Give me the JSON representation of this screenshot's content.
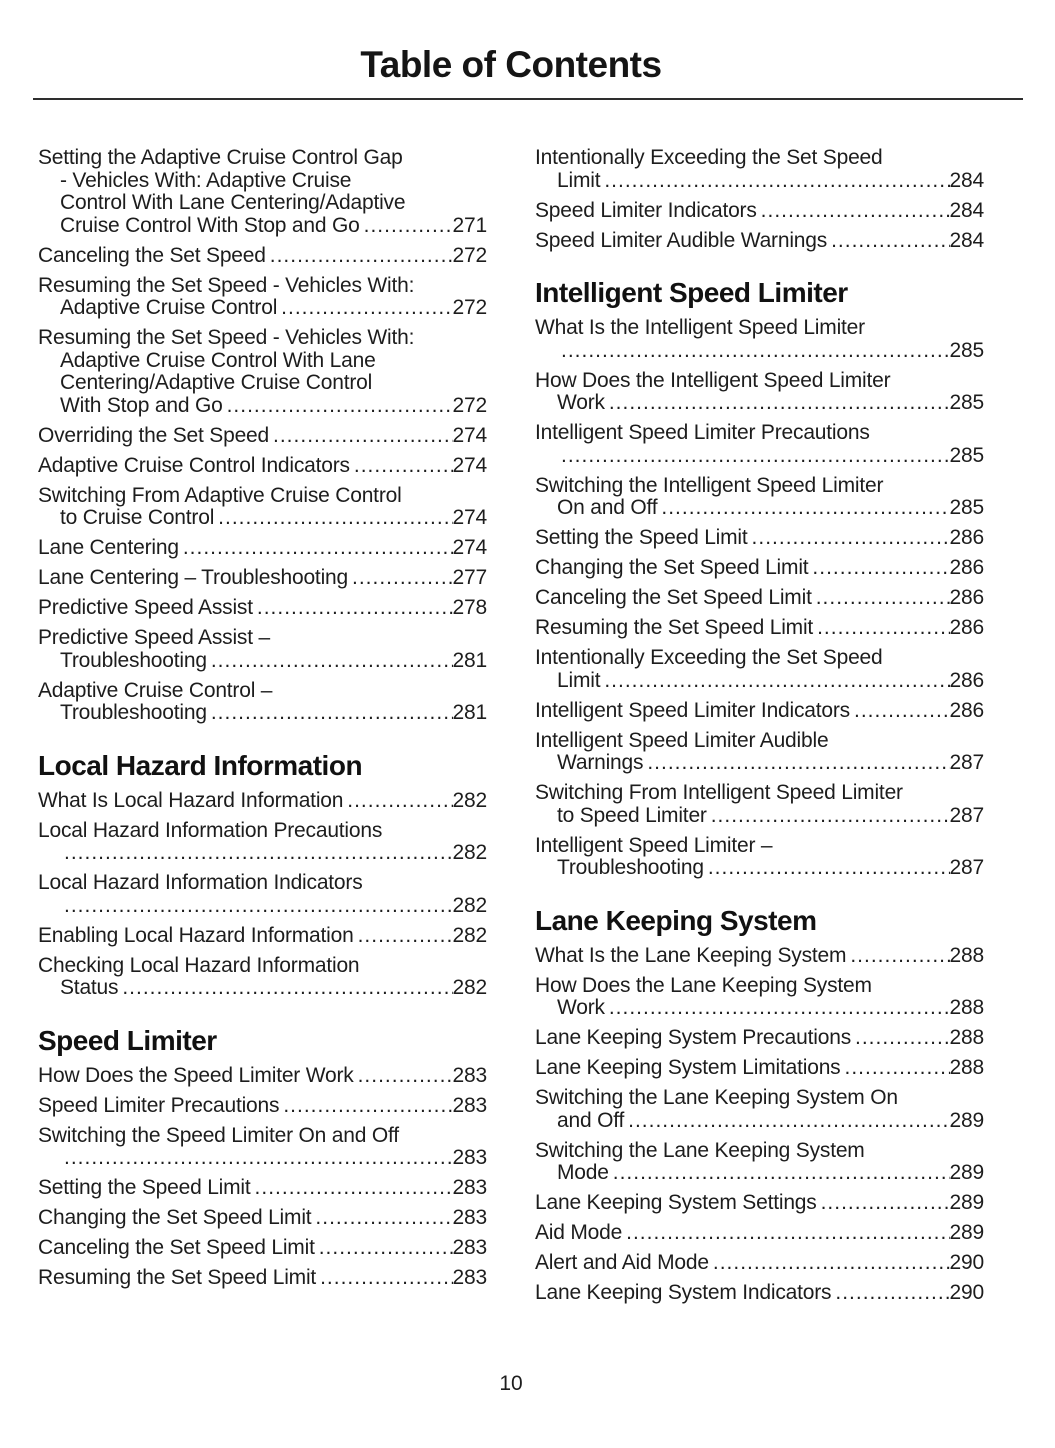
{
  "header": {
    "title": "Table of Contents"
  },
  "footer": {
    "page_number": "10"
  },
  "toc": {
    "columns": [
      {
        "blocks": [
          {
            "type": "entry",
            "lines": [
              "Setting the Adaptive Cruise Control Gap",
              "- Vehicles With: Adaptive Cruise",
              "Control With Lane Centering/Adaptive",
              "Cruise Control With Stop and Go"
            ],
            "page": "271"
          },
          {
            "type": "entry",
            "lines": [
              "Canceling the Set Speed"
            ],
            "page": "272"
          },
          {
            "type": "entry",
            "lines": [
              "Resuming the Set Speed - Vehicles With:",
              "Adaptive Cruise Control"
            ],
            "page": "272"
          },
          {
            "type": "entry",
            "lines": [
              "Resuming the Set Speed - Vehicles With:",
              "Adaptive Cruise Control With Lane",
              "Centering/Adaptive Cruise Control",
              "With Stop and Go"
            ],
            "page": "272"
          },
          {
            "type": "entry",
            "lines": [
              "Overriding the Set Speed"
            ],
            "page": "274"
          },
          {
            "type": "entry",
            "lines": [
              "Adaptive Cruise Control Indicators"
            ],
            "page": "274"
          },
          {
            "type": "entry",
            "lines": [
              "Switching From Adaptive Cruise Control",
              "to Cruise Control"
            ],
            "page": "274"
          },
          {
            "type": "entry",
            "lines": [
              "Lane Centering"
            ],
            "page": "274"
          },
          {
            "type": "entry",
            "lines": [
              "Lane Centering – Troubleshooting"
            ],
            "page": "277"
          },
          {
            "type": "entry",
            "lines": [
              "Predictive Speed Assist"
            ],
            "page": "278"
          },
          {
            "type": "entry",
            "lines": [
              "Predictive Speed Assist –",
              "Troubleshooting"
            ],
            "page": "281"
          },
          {
            "type": "entry",
            "lines": [
              "Adaptive Cruise Control –",
              "Troubleshooting"
            ],
            "page": "281"
          },
          {
            "type": "heading",
            "text": "Local Hazard Information"
          },
          {
            "type": "entry",
            "lines": [
              "What Is Local Hazard Information"
            ],
            "page": "282"
          },
          {
            "type": "entry",
            "lines": [
              "Local Hazard Information Precautions",
              ""
            ],
            "page": "282"
          },
          {
            "type": "entry",
            "lines": [
              "Local Hazard Information Indicators",
              ""
            ],
            "page": "282"
          },
          {
            "type": "entry",
            "lines": [
              "Enabling Local Hazard Information"
            ],
            "page": "282"
          },
          {
            "type": "entry",
            "lines": [
              "Checking Local Hazard Information",
              "Status"
            ],
            "page": "282"
          },
          {
            "type": "heading",
            "text": "Speed Limiter"
          },
          {
            "type": "entry",
            "lines": [
              "How Does the Speed Limiter Work"
            ],
            "page": "283"
          },
          {
            "type": "entry",
            "lines": [
              "Speed Limiter Precautions"
            ],
            "page": "283"
          },
          {
            "type": "entry",
            "lines": [
              "Switching the Speed Limiter On and Off",
              ""
            ],
            "page": "283"
          },
          {
            "type": "entry",
            "lines": [
              "Setting the Speed Limit"
            ],
            "page": "283"
          },
          {
            "type": "entry",
            "lines": [
              "Changing the Set Speed Limit"
            ],
            "page": "283"
          },
          {
            "type": "entry",
            "lines": [
              "Canceling the Set Speed Limit"
            ],
            "page": "283"
          },
          {
            "type": "entry",
            "lines": [
              "Resuming the Set Speed Limit"
            ],
            "page": "283"
          }
        ]
      },
      {
        "blocks": [
          {
            "type": "entry",
            "lines": [
              "Intentionally Exceeding the Set Speed",
              "Limit"
            ],
            "page": "284"
          },
          {
            "type": "entry",
            "lines": [
              "Speed Limiter Indicators"
            ],
            "page": "284"
          },
          {
            "type": "entry",
            "lines": [
              "Speed Limiter Audible Warnings"
            ],
            "page": "284"
          },
          {
            "type": "heading",
            "text": "Intelligent Speed Limiter"
          },
          {
            "type": "entry",
            "lines": [
              "What Is the Intelligent Speed Limiter",
              ""
            ],
            "page": "285"
          },
          {
            "type": "entry",
            "lines": [
              "How Does the Intelligent Speed Limiter",
              "Work"
            ],
            "page": "285"
          },
          {
            "type": "entry",
            "lines": [
              "Intelligent Speed Limiter Precautions",
              ""
            ],
            "page": "285"
          },
          {
            "type": "entry",
            "lines": [
              "Switching the Intelligent Speed Limiter",
              "On and Off"
            ],
            "page": "285"
          },
          {
            "type": "entry",
            "lines": [
              "Setting the Speed Limit"
            ],
            "page": "286"
          },
          {
            "type": "entry",
            "lines": [
              "Changing the Set Speed Limit"
            ],
            "page": "286"
          },
          {
            "type": "entry",
            "lines": [
              "Canceling the Set Speed Limit"
            ],
            "page": "286"
          },
          {
            "type": "entry",
            "lines": [
              "Resuming the Set Speed Limit"
            ],
            "page": "286"
          },
          {
            "type": "entry",
            "lines": [
              "Intentionally Exceeding the Set Speed",
              "Limit"
            ],
            "page": "286"
          },
          {
            "type": "entry",
            "lines": [
              "Intelligent Speed Limiter Indicators"
            ],
            "page": "286"
          },
          {
            "type": "entry",
            "lines": [
              "Intelligent Speed Limiter Audible",
              "Warnings"
            ],
            "page": "287"
          },
          {
            "type": "entry",
            "lines": [
              "Switching From Intelligent Speed Limiter",
              "to Speed Limiter"
            ],
            "page": "287"
          },
          {
            "type": "entry",
            "lines": [
              "Intelligent Speed Limiter –",
              "Troubleshooting"
            ],
            "page": "287"
          },
          {
            "type": "heading",
            "text": "Lane Keeping System"
          },
          {
            "type": "entry",
            "lines": [
              "What Is the Lane Keeping System"
            ],
            "page": "288"
          },
          {
            "type": "entry",
            "lines": [
              "How Does the Lane Keeping System",
              "Work"
            ],
            "page": "288"
          },
          {
            "type": "entry",
            "lines": [
              "Lane Keeping System Precautions"
            ],
            "page": "288"
          },
          {
            "type": "entry",
            "lines": [
              "Lane Keeping System Limitations"
            ],
            "page": "288"
          },
          {
            "type": "entry",
            "lines": [
              "Switching the Lane Keeping System On",
              "and Off"
            ],
            "page": "289"
          },
          {
            "type": "entry",
            "lines": [
              "Switching the Lane Keeping System",
              "Mode"
            ],
            "page": "289"
          },
          {
            "type": "entry",
            "lines": [
              "Lane Keeping System Settings"
            ],
            "page": "289"
          },
          {
            "type": "entry",
            "lines": [
              "Aid Mode"
            ],
            "page": "289"
          },
          {
            "type": "entry",
            "lines": [
              "Alert and Aid Mode"
            ],
            "page": "290"
          },
          {
            "type": "entry",
            "lines": [
              "Lane Keeping System Indicators"
            ],
            "page": "290"
          }
        ]
      }
    ]
  }
}
